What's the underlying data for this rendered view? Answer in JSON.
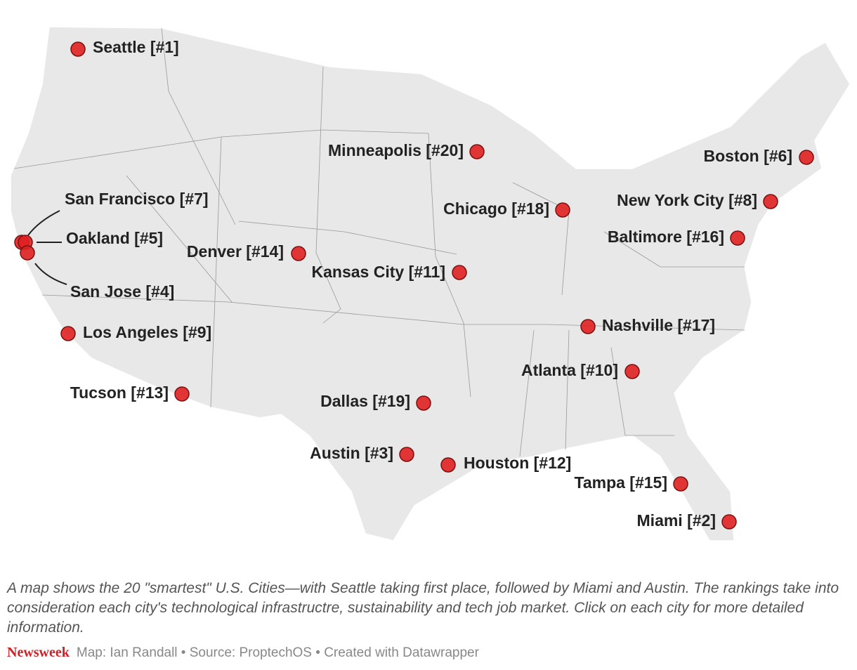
{
  "map": {
    "cities": [
      {
        "label": "Seattle [#1]"
      },
      {
        "label": "Minneapolis [#20]"
      },
      {
        "label": "Boston [#6]"
      },
      {
        "label": "San Francisco [#7]"
      },
      {
        "label": "Oakland [#5]"
      },
      {
        "label": "San Jose [#4]"
      },
      {
        "label": "Chicago [#18]"
      },
      {
        "label": "New York City [#8]"
      },
      {
        "label": "Baltimore [#16]"
      },
      {
        "label": "Denver [#14]"
      },
      {
        "label": "Kansas City [#11]"
      },
      {
        "label": "Nashville [#17]"
      },
      {
        "label": "Los Angeles [#9]"
      },
      {
        "label": "Atlanta [#10]"
      },
      {
        "label": "Tucson [#13]"
      },
      {
        "label": "Dallas [#19]"
      },
      {
        "label": "Austin [#3]"
      },
      {
        "label": "Houston [#12]"
      },
      {
        "label": "Tampa [#15]"
      },
      {
        "label": "Miami [#2]"
      }
    ]
  },
  "caption": "A map shows the 20 \"smartest\" U.S. Cities—with Seattle taking first place, followed by Miami and Austin. The rankings take into consideration each city's technological infrastructre, sustainability and tech job market. Click on each city for more detailed information.",
  "footer": {
    "brand": "Newsweek",
    "credits": "Map: Ian Randall • Source: ProptechOS • Created with Datawrapper"
  }
}
